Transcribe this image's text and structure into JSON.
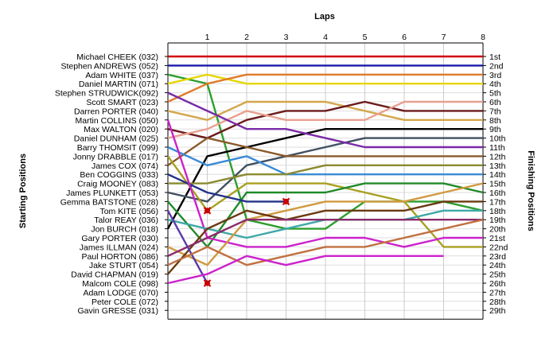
{
  "chart_data": {
    "type": "line",
    "title": "",
    "xlabel": "Laps",
    "ylabel_left": "Starting Positions",
    "ylabel_right": "Finishing Positions",
    "x": [
      0,
      1,
      2,
      3,
      4,
      5,
      6,
      7,
      8
    ],
    "x_tick_labels": [
      "1",
      "2",
      "3",
      "4",
      "5",
      "6",
      "7",
      "8"
    ],
    "position_range": [
      1,
      29
    ],
    "grid": true,
    "starting_labels": [
      "Michael CHEEK (032)",
      "Stephen ANDREWS (052)",
      "Adam WHITE (037)",
      "Daniel MARTIN (071)",
      "Stephen STRUDWICK(092)",
      "Scott SMART (023)",
      "Darren PORTER (040)",
      "Martin COLLINS (050)",
      "Max WALTON (020)",
      "Daniel DUNHAM (025)",
      "Barry THOMSIT (099)",
      "Jonny DRABBLE (017)",
      "James COX (074)",
      "Ben COGGINS (033)",
      "Craig MOONEY (083)",
      "James PLUNKETT (053)",
      "Gemma BATSTONE (028)",
      "Tom KITE (056)",
      "Talor REAY (036)",
      "Jon BURCH (018)",
      "Gary PORTER (030)",
      "James ILLMAN (024)",
      "Paul HORTON (086)",
      "Jake STURT (054)",
      "David CHAPMAN (019)",
      "Malcom COLE (098)",
      "Adam LODGE (070)",
      "Peter COLE (072)",
      "Gavin GRESSE (031)"
    ],
    "finishing_labels": [
      "1st",
      "2nd",
      "3rd",
      "4th",
      "5th",
      "6th",
      "7th",
      "8th",
      "9th",
      "10th",
      "11th",
      "12th",
      "13th",
      "14th",
      "15th",
      "16th",
      "17th",
      "18th",
      "19th",
      "20th",
      "21st",
      "22nd",
      "23rd",
      "24th",
      "25th",
      "26th",
      "27th",
      "28th",
      "29th"
    ],
    "series": [
      {
        "color": "#d00000",
        "positions": [
          1,
          1,
          1,
          1,
          1,
          1,
          1,
          1,
          1
        ]
      },
      {
        "color": "#1a1aa8",
        "positions": [
          2,
          2,
          2,
          2,
          2,
          2,
          2,
          2,
          2
        ]
      },
      {
        "color": "#2e9e2e",
        "positions": [
          3,
          4,
          19,
          20,
          20,
          17,
          17,
          17,
          18
        ]
      },
      {
        "color": "#e6d600",
        "positions": [
          4,
          3,
          4,
          4,
          4,
          4,
          4,
          4,
          4
        ]
      },
      {
        "color": "#e07b2a",
        "positions": [
          6,
          4,
          3,
          3,
          3,
          3,
          3,
          3,
          3
        ]
      },
      {
        "color": "#d4a64a",
        "positions": [
          7,
          8,
          6,
          6,
          6,
          7,
          8,
          8,
          8
        ]
      },
      {
        "color": "#6b1a1a",
        "positions": [
          9,
          10,
          8,
          7,
          7,
          6,
          7,
          7,
          7
        ]
      },
      {
        "color": "#e8a090",
        "positions": [
          10,
          9,
          7,
          8,
          8,
          8,
          6,
          6,
          6
        ]
      },
      {
        "color": "#000000",
        "positions": [
          20,
          12,
          11,
          10,
          9,
          9,
          9,
          9,
          9
        ]
      },
      {
        "color": "#405060",
        "positions": [
          16,
          17,
          13,
          12,
          11,
          10,
          10,
          10,
          10
        ]
      },
      {
        "color": "#8a5a2a",
        "positions": [
          13,
          10,
          11,
          12,
          12,
          12,
          12,
          12,
          12
        ]
      },
      {
        "color": "#7a2aa8",
        "positions": [
          5,
          7,
          9,
          9,
          10,
          11,
          11,
          11,
          11
        ]
      },
      {
        "color": "#3a8ad6",
        "positions": [
          11,
          13,
          12,
          14,
          14,
          14,
          14,
          14,
          14
        ]
      },
      {
        "color": "#8a8a30",
        "positions": [
          15,
          15,
          14,
          14,
          13,
          13,
          13,
          13,
          13
        ]
      },
      {
        "color": "#a8a020",
        "positions": [
          12,
          18,
          15,
          15,
          15,
          16,
          17,
          22,
          22
        ]
      },
      {
        "color": "#208a2a",
        "positions": [
          17,
          22,
          16,
          16,
          16,
          15,
          15,
          15,
          16
        ]
      },
      {
        "color": "#223388",
        "positions": [
          14,
          16,
          17,
          17
        ]
      },
      {
        "color": "#cc22cc",
        "positions": [
          8,
          21,
          22,
          22,
          21,
          21,
          22,
          21,
          21
        ]
      },
      {
        "color": "#40a8a8",
        "positions": [
          19,
          20,
          21,
          20,
          19,
          19,
          19,
          18,
          18
        ]
      },
      {
        "color": "#d09a40",
        "positions": [
          22,
          24,
          19,
          18,
          17,
          17,
          17,
          16,
          15
        ]
      },
      {
        "color": "#6b3a10",
        "positions": [
          25,
          20,
          18,
          19,
          18,
          18,
          18,
          17,
          17
        ]
      },
      {
        "color": "#8a2a6a",
        "positions": [
          23,
          21,
          19,
          19,
          19,
          19,
          19,
          19,
          19
        ]
      },
      {
        "color": "#5a3aa8",
        "positions": [
          18,
          26
        ]
      },
      {
        "color": "#c07040",
        "positions": [
          24,
          22,
          24,
          23,
          22,
          22,
          21,
          20,
          19
        ]
      },
      {
        "color": "#cc22cc",
        "positions": [
          26,
          25,
          23,
          24,
          23,
          23,
          23,
          23
        ]
      }
    ],
    "retirements": [
      {
        "lap": 1,
        "position": 18
      },
      {
        "lap": 3,
        "position": 17
      },
      {
        "lap": 1,
        "position": 26
      }
    ]
  }
}
